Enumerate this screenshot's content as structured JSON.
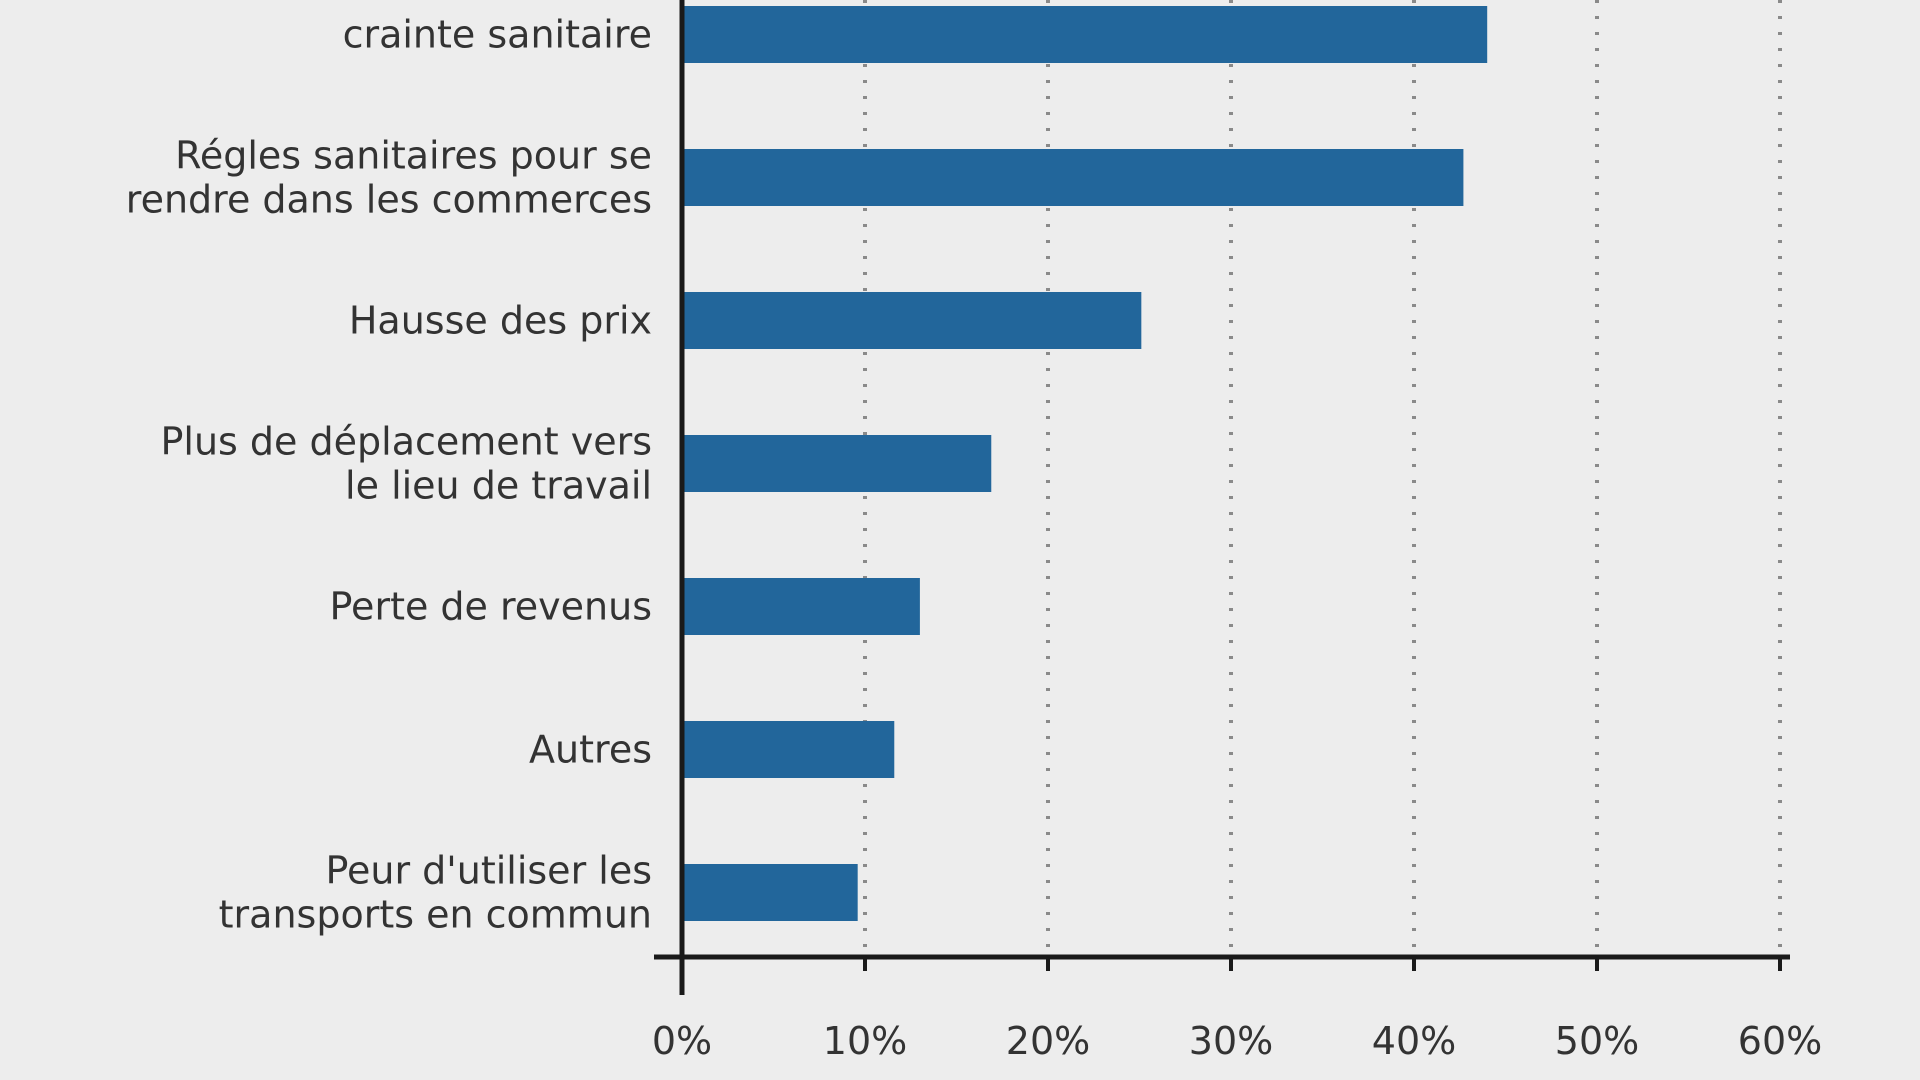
{
  "chart_data": {
    "type": "bar",
    "orientation": "horizontal",
    "title": "",
    "xlabel": "",
    "ylabel": "",
    "categories": [
      [
        "crainte sanitaire"
      ],
      [
        "Régles sanitaires pour se",
        "rendre dans les commerces"
      ],
      [
        "Hausse des prix"
      ],
      [
        "Plus de déplacement vers",
        "le lieu de travail"
      ],
      [
        "Perte de revenus"
      ],
      [
        "Autres"
      ],
      [
        "Peur d'utiliser les",
        "transports en commun"
      ]
    ],
    "values": [
      44,
      42.7,
      25.1,
      16.9,
      13,
      11.6,
      9.6
    ],
    "xlim": [
      0,
      60
    ],
    "ticks": [
      0,
      10,
      20,
      30,
      40,
      50,
      60
    ],
    "tick_labels": [
      "0%",
      "10%",
      "20%",
      "30%",
      "40%",
      "50%",
      "60%"
    ],
    "grid": "vertical dotted",
    "colors": {
      "bar": "#22669b",
      "axis": "#1a1a1a",
      "grid": "#8a8a8a",
      "text": "#333333",
      "background": "#ededed"
    }
  }
}
